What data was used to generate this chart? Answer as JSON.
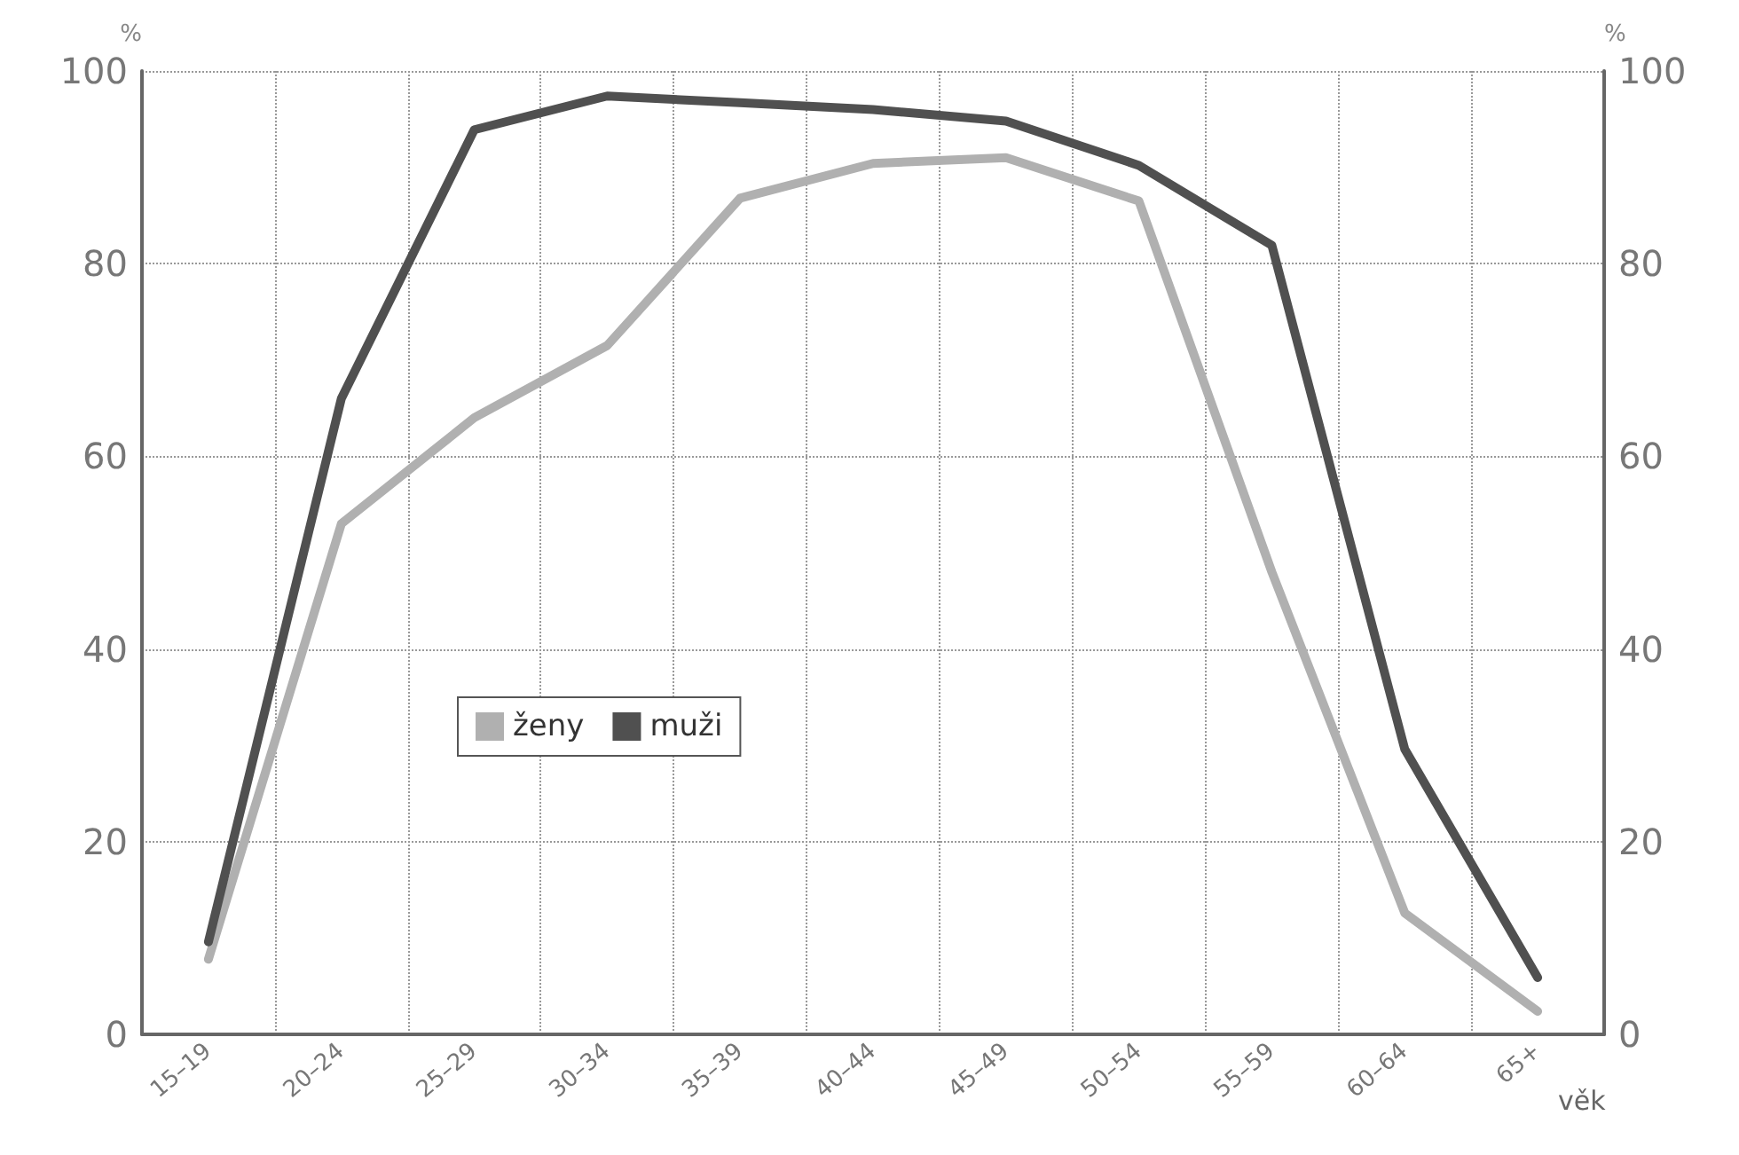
{
  "chart_data": {
    "type": "line",
    "xlabel": "věk",
    "ylabel": "%",
    "y2label": "%",
    "categories": [
      "15–19",
      "20–24",
      "25–29",
      "30–34",
      "35–39",
      "40–44",
      "45–49",
      "50–54",
      "55–59",
      "60–64",
      "65+"
    ],
    "series": [
      {
        "name": "ženy",
        "color": "#b0b0b0",
        "values": [
          7.8,
          53,
          64,
          71.5,
          86.8,
          90.4,
          91,
          86.5,
          48,
          12.6,
          2.4
        ]
      },
      {
        "name": "muži",
        "color": "#505050",
        "values": [
          9.6,
          66,
          93.9,
          97.4,
          96.7,
          96,
          94.8,
          90.2,
          81.9,
          29.6,
          5.9
        ]
      }
    ],
    "ylim": [
      0,
      100
    ],
    "yticks": [
      0,
      20,
      40,
      60,
      80,
      100
    ],
    "y2lim": [
      0,
      100
    ],
    "y2ticks": [
      0,
      20,
      40,
      60,
      80,
      100
    ],
    "grid": true,
    "legend": "center",
    "marker": "none",
    "line_style": "solid"
  }
}
